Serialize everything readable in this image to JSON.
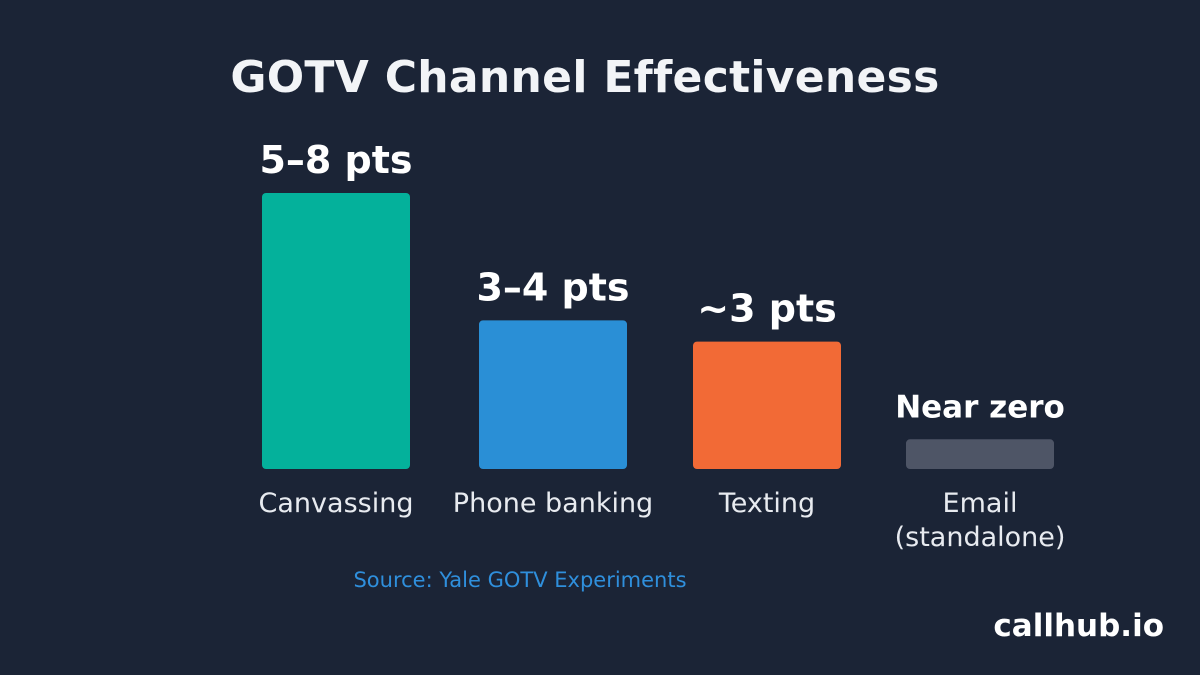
{
  "chart_data": {
    "type": "bar",
    "title": "GOTV Channel Effectiveness",
    "categories": [
      [
        "Canvassing"
      ],
      [
        "Phone banking"
      ],
      [
        "Texting"
      ],
      [
        "Email",
        "(standalone)"
      ]
    ],
    "values": [
      6.5,
      3.5,
      3,
      0.7
    ],
    "data_labels": [
      "5–8 pts",
      "3–4 pts",
      "~3 pts",
      "Near zero"
    ],
    "colors": [
      "#04b19b",
      "#2a8fd6",
      "#f26a36",
      "#4e5566"
    ],
    "unit": "pts",
    "ylim": [
      0,
      6.5
    ],
    "grid": false,
    "legend": "none"
  },
  "source": "Source: Yale GOTV Experiments",
  "brand": "callhub.io"
}
